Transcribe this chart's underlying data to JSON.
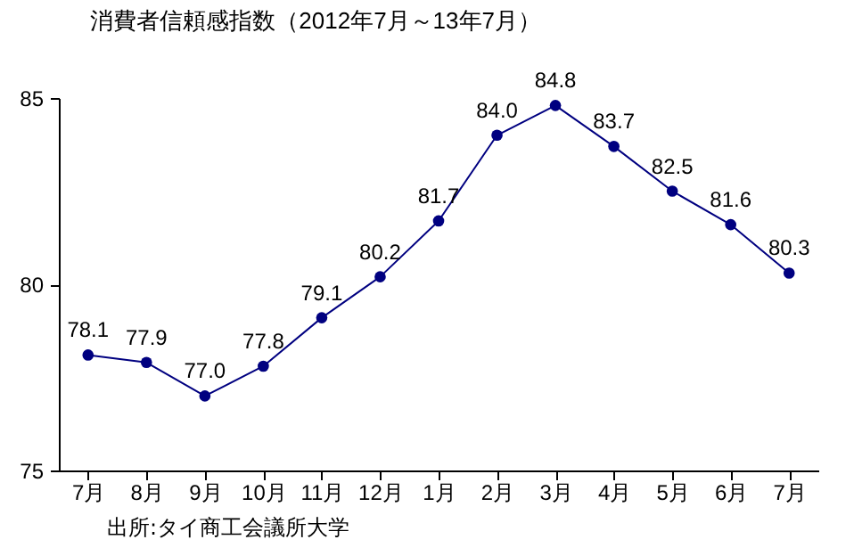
{
  "chart_data": {
    "type": "line",
    "title": "消費者信頼感指数（2012年7月～13年7月）",
    "categories": [
      "7月",
      "8月",
      "9月",
      "10月",
      "11月",
      "12月",
      "1月",
      "2月",
      "3月",
      "4月",
      "5月",
      "6月",
      "7月"
    ],
    "series": [
      {
        "color": "#000080",
        "values": [
          78.1,
          77.9,
          77.0,
          77.8,
          79.1,
          80.2,
          81.7,
          84.0,
          84.8,
          83.7,
          82.5,
          81.6,
          80.3
        ],
        "value_labels": [
          "78.1",
          "77.9",
          "77.0",
          "77.8",
          "79.1",
          "80.2",
          "81.7",
          "84.0",
          "84.8",
          "83.7",
          "82.5",
          "81.6",
          "80.3"
        ]
      }
    ],
    "ylim": [
      75,
      85
    ],
    "yticks": [
      75,
      80,
      85
    ],
    "grid": false,
    "marker": "circle",
    "line_style": "solid",
    "annotations": [
      "出所:タイ商工会議所大学"
    ]
  }
}
